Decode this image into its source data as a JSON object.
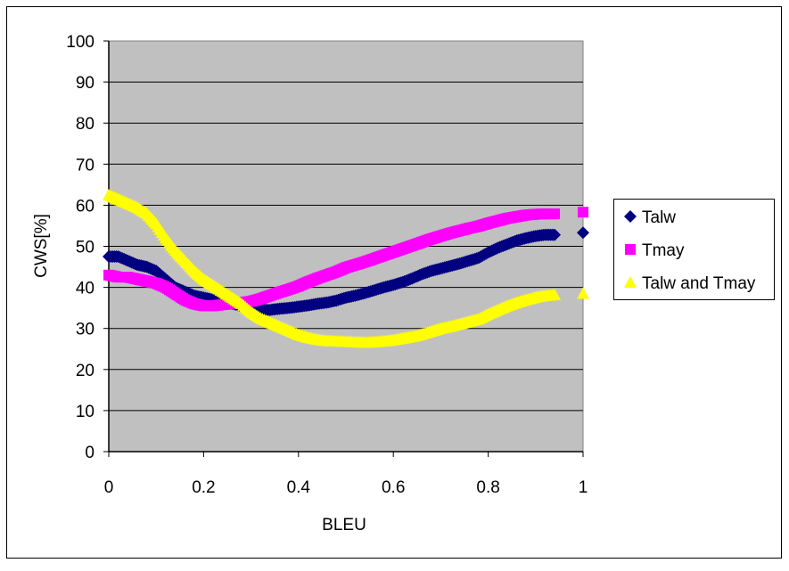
{
  "chart_data": {
    "type": "scatter",
    "title": "",
    "xlabel": "BLEU",
    "ylabel": "CWS[%]",
    "xlim": [
      0,
      1
    ],
    "ylim": [
      0,
      100
    ],
    "xticks": [
      "0",
      "0.2",
      "0.4",
      "0.6",
      "0.8",
      "1"
    ],
    "yticks": [
      "0",
      "10",
      "20",
      "30",
      "40",
      "50",
      "60",
      "70",
      "80",
      "90",
      "100"
    ],
    "grid": true,
    "legend_position": "right",
    "plot_background": "#c0c0c0",
    "series": [
      {
        "name": "Talw",
        "marker": "diamond",
        "color": "#000080",
        "x": [
          0.0,
          0.02,
          0.04,
          0.06,
          0.08,
          0.1,
          0.12,
          0.14,
          0.16,
          0.18,
          0.2,
          0.22,
          0.24,
          0.26,
          0.28,
          0.3,
          0.32,
          0.34,
          0.36,
          0.38,
          0.4,
          0.42,
          0.44,
          0.46,
          0.48,
          0.5,
          0.52,
          0.54,
          0.56,
          0.58,
          0.6,
          0.62,
          0.64,
          0.66,
          0.68,
          0.7,
          0.72,
          0.74,
          0.76,
          0.78,
          0.8,
          0.82,
          0.84,
          0.86,
          0.88,
          0.9,
          0.92,
          0.94,
          1.0
        ],
        "y": [
          47.5,
          47.5,
          46.5,
          45.5,
          45,
          44,
          42,
          40,
          39,
          38,
          37.5,
          37,
          36.5,
          36,
          35.5,
          35,
          34.5,
          34.5,
          34.8,
          35,
          35.3,
          35.6,
          36,
          36.3,
          36.8,
          37.5,
          38,
          38.6,
          39.3,
          40,
          40.6,
          41.3,
          42.2,
          43.2,
          44,
          44.6,
          45.2,
          45.8,
          46.5,
          47.2,
          48.5,
          49.6,
          50.5,
          51.4,
          52,
          52.5,
          52.8,
          52.8,
          53.3
        ]
      },
      {
        "name": "Tmay",
        "marker": "square",
        "color": "#ff00ff",
        "x": [
          0.0,
          0.02,
          0.04,
          0.06,
          0.08,
          0.1,
          0.12,
          0.14,
          0.16,
          0.18,
          0.2,
          0.22,
          0.24,
          0.26,
          0.28,
          0.3,
          0.32,
          0.34,
          0.36,
          0.38,
          0.4,
          0.42,
          0.44,
          0.46,
          0.48,
          0.5,
          0.52,
          0.54,
          0.56,
          0.58,
          0.6,
          0.62,
          0.64,
          0.66,
          0.68,
          0.7,
          0.72,
          0.74,
          0.76,
          0.78,
          0.8,
          0.82,
          0.84,
          0.86,
          0.88,
          0.9,
          0.92,
          0.94,
          1.0
        ],
        "y": [
          43,
          42.5,
          42.5,
          42,
          41.5,
          41,
          40,
          38.5,
          37,
          36,
          35.5,
          35.5,
          35.8,
          36,
          36.3,
          36.6,
          37.2,
          38,
          38.8,
          39.5,
          40.3,
          41.3,
          42.2,
          43,
          43.8,
          44.8,
          45.5,
          46.2,
          47,
          47.8,
          48.6,
          49.4,
          50.2,
          51,
          51.8,
          52.5,
          53.2,
          53.8,
          54.4,
          54.9,
          55.6,
          56.2,
          56.8,
          57.2,
          57.6,
          57.8,
          57.9,
          57.9,
          58.3
        ]
      },
      {
        "name": "Talw and Tmay",
        "marker": "triangle",
        "color": "#ffff00",
        "x": [
          0.0,
          0.02,
          0.04,
          0.06,
          0.08,
          0.1,
          0.12,
          0.14,
          0.16,
          0.18,
          0.2,
          0.22,
          0.24,
          0.26,
          0.28,
          0.3,
          0.32,
          0.34,
          0.36,
          0.38,
          0.4,
          0.42,
          0.44,
          0.46,
          0.48,
          0.5,
          0.52,
          0.54,
          0.56,
          0.58,
          0.6,
          0.62,
          0.64,
          0.66,
          0.68,
          0.7,
          0.72,
          0.74,
          0.76,
          0.78,
          0.8,
          0.82,
          0.84,
          0.86,
          0.88,
          0.9,
          0.92,
          0.94,
          1.0
        ],
        "y": [
          62.5,
          61.5,
          60.5,
          59.5,
          58,
          55.5,
          52,
          49,
          46.5,
          44,
          42,
          40.5,
          39,
          37.5,
          36,
          34,
          32.5,
          31.5,
          30.5,
          29.5,
          28.5,
          27.8,
          27.3,
          27,
          26.9,
          26.8,
          26.7,
          26.6,
          26.7,
          26.9,
          27.2,
          27.6,
          28,
          28.6,
          29.3,
          30,
          30.5,
          31.1,
          31.7,
          32.3,
          33.5,
          34.5,
          35.5,
          36.3,
          37,
          37.6,
          38,
          38.2,
          38.5
        ]
      }
    ]
  }
}
